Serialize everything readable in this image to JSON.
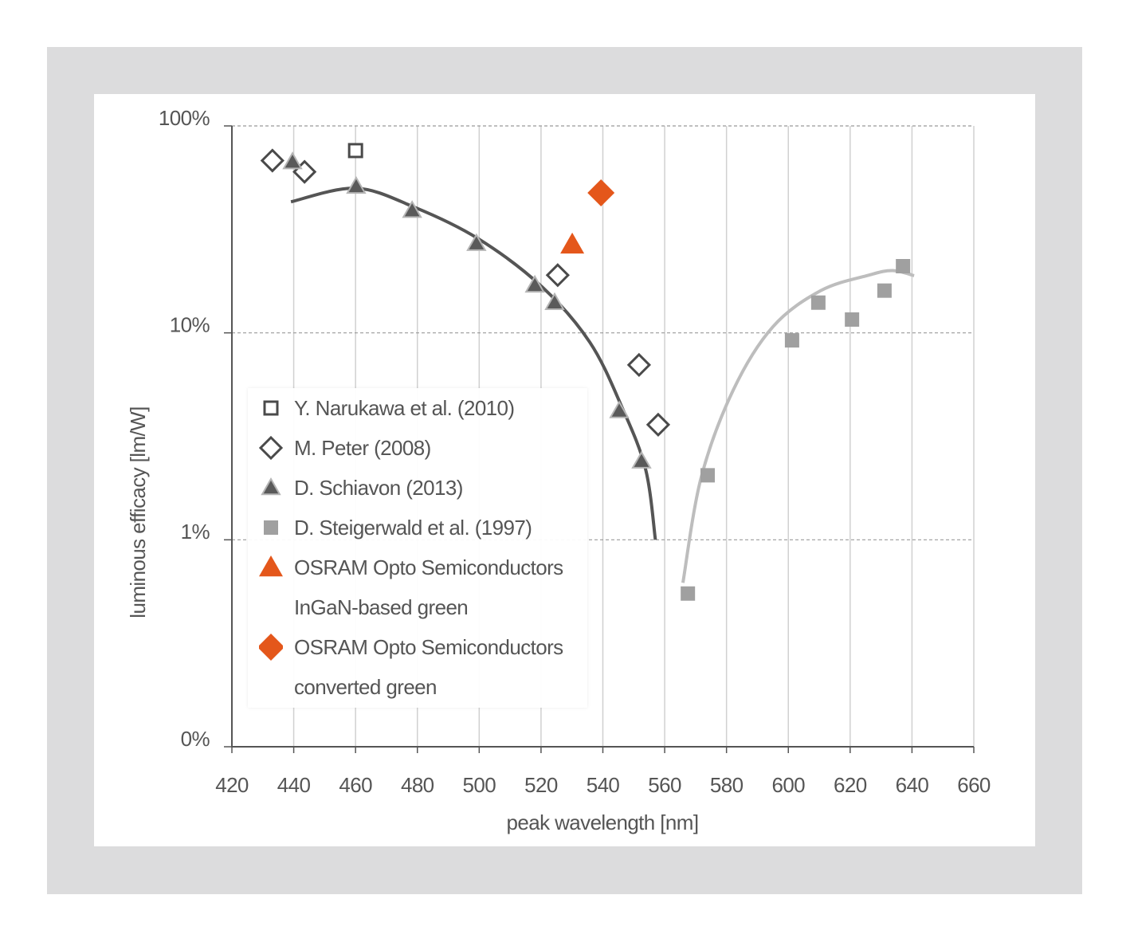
{
  "chart_data": {
    "type": "scatter",
    "xlabel": "peak wavelength [nm]",
    "ylabel": "luminous efficacy [lm/W]",
    "xlim": [
      420,
      660
    ],
    "xticks": [
      420,
      440,
      460,
      480,
      500,
      520,
      540,
      560,
      580,
      600,
      620,
      640,
      660
    ],
    "ylim": [
      0.1,
      100
    ],
    "log_y": true,
    "yticks": [
      {
        "value": 100,
        "label": "100%"
      },
      {
        "value": 10,
        "label": "10%"
      },
      {
        "value": 1,
        "label": "1%"
      },
      {
        "value": 0.1,
        "label": "0%"
      }
    ],
    "grid": true,
    "legend": "lower left",
    "series": [
      {
        "name": "Y. Narukawa et al. (2010)",
        "marker": "square-open",
        "color": "#4a4a4a",
        "x": [
          460
        ],
        "values": [
          76
        ]
      },
      {
        "name": "M. Peter (2008)",
        "marker": "diamond-open",
        "color": "#4a4a4a",
        "x": [
          433.1,
          443.5,
          525.4,
          551.7,
          557.9
        ],
        "values": [
          68,
          60,
          19,
          7.0,
          3.6
        ]
      },
      {
        "name": "D. Schiavon (2013)",
        "marker": "triangle",
        "color": "#5a5a5a",
        "x": [
          439.6,
          460.2,
          478.3,
          499.1,
          518,
          524.4,
          545.3,
          552.5
        ],
        "values": [
          67,
          51,
          39,
          27,
          17,
          14,
          4.2,
          2.4
        ]
      },
      {
        "name": "D. Steigerwald et al. (1997)",
        "marker": "square",
        "color": "#a0a0a0",
        "x": [
          567.5,
          573.9,
          601.2,
          609.7,
          620.6,
          631.1,
          637.1
        ],
        "values": [
          0.55,
          2.05,
          9.2,
          14,
          11.6,
          16,
          21
        ]
      },
      {
        "name": "OSRAM Opto Semiconductors\nInGaN-based green",
        "marker": "triangle",
        "color": "#e4571b",
        "x": [
          530.1
        ],
        "values": [
          26.7
        ]
      },
      {
        "name": "OSRAM Opto Semiconductors\nconverted green",
        "marker": "diamond",
        "color": "#e4571b",
        "x": [
          539.4
        ],
        "values": [
          47.5
        ]
      }
    ],
    "trend_lines": [
      {
        "color": "#555555",
        "x": [
          439.1,
          460,
          479,
          499.7,
          520.3,
          535.8,
          546.1,
          553.8,
          557
        ],
        "values": [
          43,
          50,
          40.5,
          28.5,
          16.7,
          9,
          4.4,
          2.2,
          1
        ]
      },
      {
        "color": "#bdbdbd",
        "x": [
          565.9,
          571.8,
          582.2,
          595,
          610.5,
          626,
          633.7,
          640.7
        ],
        "values": [
          0.62,
          2,
          5.3,
          10.7,
          16,
          19,
          20,
          18.9
        ]
      }
    ]
  }
}
